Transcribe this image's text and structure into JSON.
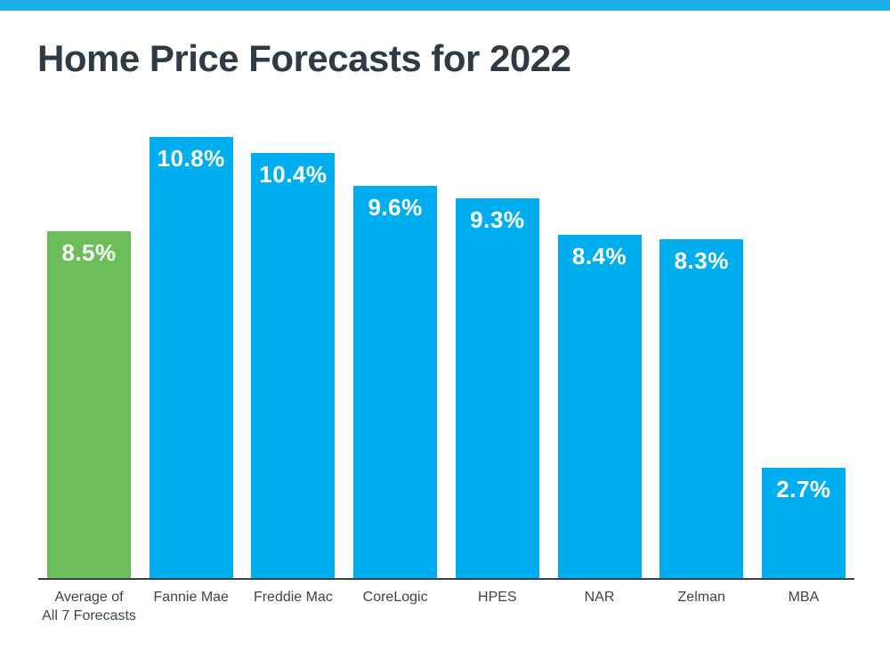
{
  "page": {
    "accent_bar_color": "#17AEE9",
    "background_color": "#ffffff"
  },
  "title": "Home Price Forecasts for 2022",
  "chart_data": {
    "type": "bar",
    "title": "Home Price Forecasts for 2022",
    "categories": [
      "Average of All 7 Forecasts",
      "Fannie Mae",
      "Freddie Mac",
      "CoreLogic",
      "HPES",
      "NAR",
      "Zelman",
      "MBA"
    ],
    "category_display": [
      "Average of\nAll 7 Forecasts",
      "Fannie Mae",
      "Freddie Mac",
      "CoreLogic",
      "HPES",
      "NAR",
      "Zelman",
      "MBA"
    ],
    "values": [
      8.5,
      10.8,
      10.4,
      9.6,
      9.3,
      8.4,
      8.3,
      2.7
    ],
    "value_labels": [
      "8.5%",
      "10.8%",
      "10.4%",
      "9.6%",
      "9.3%",
      "8.4%",
      "8.3%",
      "2.7%"
    ],
    "bar_colors": [
      "#6CBE5A",
      "#00AEEF",
      "#00AEEF",
      "#00AEEF",
      "#00AEEF",
      "#00AEEF",
      "#00AEEF",
      "#00AEEF"
    ],
    "highlight_color": "#6CBE5A",
    "default_color": "#00AEEF",
    "value_label_color": "#ffffff",
    "category_label_color": "#3A4550",
    "axis_line_color": "#343F4B",
    "ylim": [
      0,
      10.8
    ],
    "grid": false,
    "legend": false,
    "xlabel": "",
    "ylabel": ""
  }
}
